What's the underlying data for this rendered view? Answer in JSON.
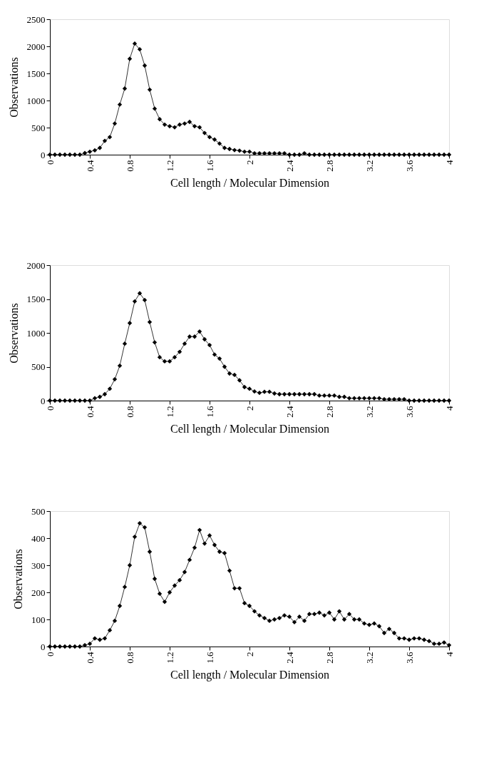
{
  "chart_data": [
    {
      "type": "line",
      "xlabel": "Cell length / Molecular Dimension",
      "ylabel": "Observations",
      "color": "#000000",
      "marker": "diamond",
      "xlim": [
        0,
        4
      ],
      "xticks": [
        0,
        0.4,
        0.8,
        1.2,
        1.6,
        2,
        2.4,
        2.8,
        3.2,
        3.6,
        4
      ],
      "ylim": [
        0,
        2500
      ],
      "yticks": [
        0,
        500,
        1000,
        1500,
        2000,
        2500
      ],
      "x": [
        0,
        0.05,
        0.1,
        0.15,
        0.2,
        0.25,
        0.3,
        0.35,
        0.4,
        0.45,
        0.5,
        0.55,
        0.6,
        0.65,
        0.7,
        0.75,
        0.8,
        0.85,
        0.9,
        0.95,
        1,
        1.05,
        1.1,
        1.15,
        1.2,
        1.25,
        1.3,
        1.35,
        1.4,
        1.45,
        1.5,
        1.55,
        1.6,
        1.65,
        1.7,
        1.75,
        1.8,
        1.85,
        1.9,
        1.95,
        2,
        2.05,
        2.1,
        2.15,
        2.2,
        2.25,
        2.3,
        2.35,
        2.4,
        2.45,
        2.5,
        2.55,
        2.6,
        2.65,
        2.7,
        2.75,
        2.8,
        2.85,
        2.9,
        2.95,
        3,
        3.05,
        3.1,
        3.15,
        3.2,
        3.25,
        3.3,
        3.35,
        3.4,
        3.45,
        3.5,
        3.55,
        3.6,
        3.65,
        3.7,
        3.75,
        3.8,
        3.85,
        3.9,
        3.95,
        4
      ],
      "values": [
        0,
        0,
        0,
        0,
        0,
        0,
        0,
        30,
        55,
        80,
        125,
        255,
        325,
        575,
        925,
        1220,
        1770,
        2050,
        1945,
        1645,
        1200,
        850,
        655,
        555,
        525,
        505,
        555,
        575,
        605,
        525,
        505,
        400,
        325,
        280,
        205,
        125,
        105,
        85,
        75,
        55,
        55,
        25,
        25,
        25,
        25,
        25,
        25,
        25,
        0,
        0,
        0,
        25,
        0,
        0,
        0,
        0,
        0,
        0,
        0,
        0,
        0,
        0,
        0,
        0,
        0,
        0,
        0,
        0,
        0,
        0,
        0,
        0,
        0,
        0,
        0,
        0,
        0,
        0,
        0,
        0,
        0
      ]
    },
    {
      "type": "line",
      "xlabel": "Cell length / Molecular Dimension",
      "ylabel": "Observations",
      "color": "#000000",
      "marker": "diamond",
      "xlim": [
        0,
        4
      ],
      "xticks": [
        0,
        0.4,
        0.8,
        1.2,
        1.6,
        2,
        2.4,
        2.8,
        3.2,
        3.6,
        4
      ],
      "ylim": [
        0,
        2000
      ],
      "yticks": [
        0,
        500,
        1000,
        1500,
        2000
      ],
      "x": [
        0,
        0.05,
        0.1,
        0.15,
        0.2,
        0.25,
        0.3,
        0.35,
        0.4,
        0.45,
        0.5,
        0.55,
        0.6,
        0.65,
        0.7,
        0.75,
        0.8,
        0.85,
        0.9,
        0.95,
        1,
        1.05,
        1.1,
        1.15,
        1.2,
        1.25,
        1.3,
        1.35,
        1.4,
        1.45,
        1.5,
        1.55,
        1.6,
        1.65,
        1.7,
        1.75,
        1.8,
        1.85,
        1.9,
        1.95,
        2,
        2.05,
        2.1,
        2.15,
        2.2,
        2.25,
        2.3,
        2.35,
        2.4,
        2.45,
        2.5,
        2.55,
        2.6,
        2.65,
        2.7,
        2.75,
        2.8,
        2.85,
        2.9,
        2.95,
        3,
        3.05,
        3.1,
        3.15,
        3.2,
        3.25,
        3.3,
        3.35,
        3.4,
        3.45,
        3.5,
        3.55,
        3.6,
        3.65,
        3.7,
        3.75,
        3.8,
        3.85,
        3.9,
        3.95,
        4
      ],
      "values": [
        0,
        0,
        0,
        0,
        0,
        0,
        0,
        0,
        0,
        35,
        55,
        95,
        175,
        315,
        515,
        840,
        1145,
        1465,
        1585,
        1485,
        1160,
        860,
        640,
        580,
        580,
        640,
        720,
        840,
        945,
        945,
        1020,
        905,
        820,
        680,
        620,
        500,
        400,
        380,
        300,
        200,
        175,
        135,
        115,
        130,
        130,
        105,
        95,
        95,
        95,
        95,
        95,
        95,
        95,
        95,
        75,
        75,
        75,
        75,
        55,
        55,
        35,
        35,
        35,
        35,
        35,
        35,
        35,
        20,
        20,
        20,
        20,
        20,
        0,
        0,
        0,
        0,
        0,
        0,
        0,
        0,
        0
      ]
    },
    {
      "type": "line",
      "xlabel": "Cell length / Molecular Dimension",
      "ylabel": "Observations",
      "color": "#000000",
      "marker": "diamond",
      "xlim": [
        0,
        4
      ],
      "xticks": [
        0,
        0.4,
        0.8,
        1.2,
        1.6,
        2,
        2.4,
        2.8,
        3.2,
        3.6,
        4
      ],
      "ylim": [
        0,
        500
      ],
      "yticks": [
        0,
        100,
        200,
        300,
        400,
        500
      ],
      "x": [
        0,
        0.05,
        0.1,
        0.15,
        0.2,
        0.25,
        0.3,
        0.35,
        0.4,
        0.45,
        0.5,
        0.55,
        0.6,
        0.65,
        0.7,
        0.75,
        0.8,
        0.85,
        0.9,
        0.95,
        1,
        1.05,
        1.1,
        1.15,
        1.2,
        1.25,
        1.3,
        1.35,
        1.4,
        1.45,
        1.5,
        1.55,
        1.6,
        1.65,
        1.7,
        1.75,
        1.8,
        1.85,
        1.9,
        1.95,
        2,
        2.05,
        2.1,
        2.15,
        2.2,
        2.25,
        2.3,
        2.35,
        2.4,
        2.45,
        2.5,
        2.55,
        2.6,
        2.65,
        2.7,
        2.75,
        2.8,
        2.85,
        2.9,
        2.95,
        3,
        3.05,
        3.1,
        3.15,
        3.2,
        3.25,
        3.3,
        3.35,
        3.4,
        3.45,
        3.5,
        3.55,
        3.6,
        3.65,
        3.7,
        3.75,
        3.8,
        3.85,
        3.9,
        3.95,
        4
      ],
      "values": [
        0,
        0,
        0,
        0,
        0,
        0,
        0,
        5,
        10,
        30,
        25,
        30,
        60,
        95,
        150,
        220,
        300,
        405,
        455,
        440,
        350,
        250,
        195,
        165,
        200,
        225,
        245,
        275,
        320,
        365,
        430,
        380,
        410,
        375,
        350,
        345,
        280,
        215,
        215,
        160,
        150,
        130,
        115,
        105,
        95,
        100,
        105,
        115,
        110,
        90,
        110,
        95,
        120,
        120,
        125,
        115,
        125,
        100,
        130,
        100,
        120,
        100,
        100,
        85,
        80,
        85,
        75,
        50,
        65,
        50,
        30,
        30,
        25,
        30,
        30,
        25,
        20,
        10,
        10,
        15,
        5
      ]
    }
  ]
}
